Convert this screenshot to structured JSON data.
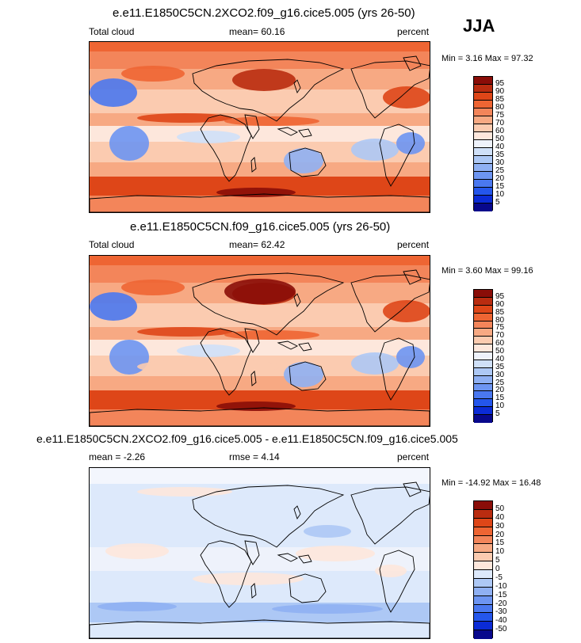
{
  "season": "JJA",
  "panels": [
    {
      "title": "e.e11.E1850C5CN.2XCO2.f09_g16.cice5.005 (yrs 26-50)",
      "left_label": "Total cloud",
      "center_label": "mean=  60.16",
      "right_label": "percent",
      "minmax": "Min =  3.16 Max =  97.32"
    },
    {
      "title": "e.e11.E1850C5CN.f09_g16.cice5.005 (yrs 26-50)",
      "left_label": "Total cloud",
      "center_label": "mean=  62.42",
      "right_label": "percent",
      "minmax": "Min =  3.60 Max =  99.16"
    },
    {
      "title": "e.e11.E1850C5CN.2XCO2.f09_g16.cice5.005 - e.e11.E1850C5CN.f09_g16.cice5.005",
      "left_label": "mean =  -2.26",
      "center_label": "rmse =  4.14",
      "right_label": "percent",
      "minmax": "Min = -14.92 Max =  16.48"
    }
  ],
  "chart_data": [
    {
      "type": "heatmap",
      "title": "e.e11.E1850C5CN.2XCO2.f09_g16.cice5.005 (yrs 26-50)",
      "variable": "Total cloud",
      "units": "percent",
      "season": "JJA",
      "mean": 60.16,
      "min": 3.16,
      "max": 97.32,
      "colorbar_levels": [
        5,
        10,
        15,
        20,
        25,
        30,
        35,
        40,
        50,
        60,
        70,
        75,
        80,
        85,
        90,
        95
      ],
      "colors": [
        "#08088c",
        "#0b2bd6",
        "#2456ec",
        "#4a78f0",
        "#6d95f2",
        "#8fb0f3",
        "#adc8f5",
        "#cfe0f8",
        "#eef2fb",
        "#fde7dc",
        "#fbcbb0",
        "#f7a983",
        "#f3855a",
        "#ee6533",
        "#de4618",
        "#b92c10",
        "#8a0d08"
      ]
    },
    {
      "type": "heatmap",
      "title": "e.e11.E1850C5CN.f09_g16.cice5.005 (yrs 26-50)",
      "variable": "Total cloud",
      "units": "percent",
      "season": "JJA",
      "mean": 62.42,
      "min": 3.6,
      "max": 99.16,
      "colorbar_levels": [
        5,
        10,
        15,
        20,
        25,
        30,
        35,
        40,
        50,
        60,
        70,
        75,
        80,
        85,
        90,
        95
      ],
      "colors": [
        "#08088c",
        "#0b2bd6",
        "#2456ec",
        "#4a78f0",
        "#6d95f2",
        "#8fb0f3",
        "#adc8f5",
        "#cfe0f8",
        "#eef2fb",
        "#fde7dc",
        "#fbcbb0",
        "#f7a983",
        "#f3855a",
        "#ee6533",
        "#de4618",
        "#b92c10",
        "#8a0d08"
      ]
    },
    {
      "type": "heatmap",
      "title": "e.e11.E1850C5CN.2XCO2.f09_g16.cice5.005 - e.e11.E1850C5CN.f09_g16.cice5.005",
      "units": "percent",
      "season": "JJA",
      "mean": -2.26,
      "rmse": 4.14,
      "min": -14.92,
      "max": 16.48,
      "colorbar_levels": [
        -50,
        -40,
        -30,
        -20,
        -15,
        -10,
        -5,
        0,
        5,
        10,
        15,
        20,
        30,
        40,
        50
      ],
      "colors": [
        "#08088c",
        "#0b2bd6",
        "#2456ec",
        "#4a78f0",
        "#6d95f2",
        "#8fb0f3",
        "#adc8f5",
        "#dde9fb",
        "#fde7dc",
        "#fbcbb0",
        "#f7a983",
        "#f3855a",
        "#ee6533",
        "#de4618",
        "#b92c10",
        "#8a0d08"
      ]
    }
  ]
}
